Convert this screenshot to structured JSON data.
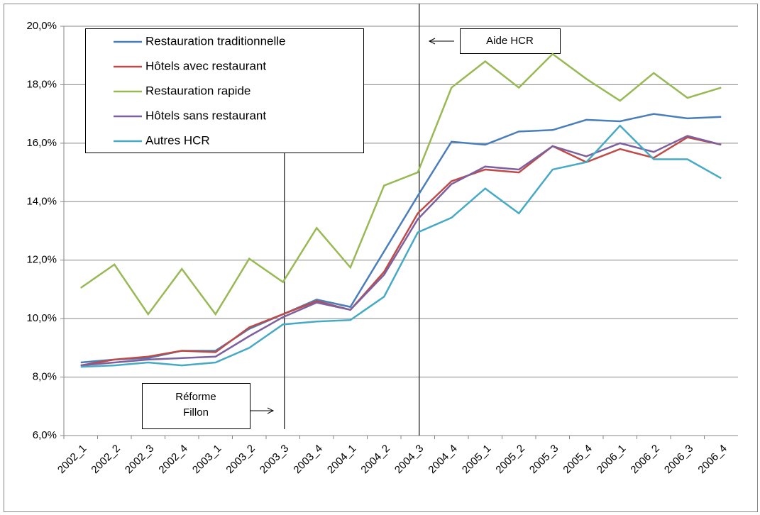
{
  "chart_data": {
    "type": "line",
    "categories": [
      "2002_1",
      "2002_2",
      "2002_3",
      "2002_4",
      "2003_1",
      "2003_2",
      "2003_3",
      "2003_4",
      "2004_1",
      "2004_2",
      "2004_3",
      "2004_4",
      "2005_1",
      "2005_2",
      "2005_3",
      "2005_4",
      "2006_1",
      "2006_2",
      "2006_3",
      "2006_4"
    ],
    "series": [
      {
        "name": "Restauration traditionnelle",
        "color": "#4a7ebb",
        "values": [
          8.5,
          8.6,
          8.65,
          8.9,
          8.9,
          9.65,
          10.15,
          10.65,
          10.4,
          12.3,
          14.2,
          16.05,
          15.95,
          16.4,
          16.45,
          16.8,
          16.75,
          17.0,
          16.85,
          16.9
        ]
      },
      {
        "name": "Hôtels avec restaurant",
        "color": "#be4b48",
        "values": [
          8.4,
          8.6,
          8.7,
          8.9,
          8.85,
          9.7,
          10.15,
          10.6,
          10.3,
          11.6,
          13.6,
          14.7,
          15.1,
          15.0,
          15.9,
          15.35,
          15.8,
          15.5,
          16.2,
          15.95
        ]
      },
      {
        "name": "Restauration rapide",
        "color": "#98b954",
        "values": [
          11.05,
          11.85,
          10.15,
          11.7,
          10.15,
          12.05,
          11.25,
          13.1,
          11.75,
          14.55,
          15.0,
          17.9,
          18.8,
          17.9,
          19.05,
          18.2,
          17.45,
          18.4,
          17.55,
          17.9
        ]
      },
      {
        "name": "Hôtels sans restaurant",
        "color": "#7d60a0",
        "values": [
          8.4,
          8.5,
          8.6,
          8.65,
          8.7,
          9.4,
          10.05,
          10.55,
          10.3,
          11.5,
          13.4,
          14.6,
          15.2,
          15.1,
          15.9,
          15.55,
          16.0,
          15.7,
          16.25,
          15.95
        ]
      },
      {
        "name": "Autres HCR",
        "color": "#46aac5",
        "values": [
          8.35,
          8.4,
          8.5,
          8.4,
          8.5,
          9.0,
          9.8,
          9.9,
          9.95,
          10.75,
          12.95,
          13.45,
          14.45,
          13.6,
          15.1,
          15.35,
          16.6,
          15.45,
          15.45,
          14.8
        ]
      }
    ],
    "ylim": [
      6,
      20
    ],
    "yticks": [
      {
        "value": 6,
        "label": "6,0%"
      },
      {
        "value": 8,
        "label": "8,0%"
      },
      {
        "value": 10,
        "label": "10,0%"
      },
      {
        "value": 12,
        "label": "12,0%"
      },
      {
        "value": 14,
        "label": "14,0%"
      },
      {
        "value": 16,
        "label": "16,0%"
      },
      {
        "value": 18,
        "label": "18,0%"
      },
      {
        "value": 20,
        "label": "20,0%"
      }
    ],
    "grid": true,
    "legend": "top-left",
    "annotations": [
      {
        "lines": [
          "Réforme",
          "Fillon"
        ],
        "at": "2003_3"
      },
      {
        "lines": [
          "Aide HCR"
        ],
        "at": "2004_3"
      }
    ]
  }
}
